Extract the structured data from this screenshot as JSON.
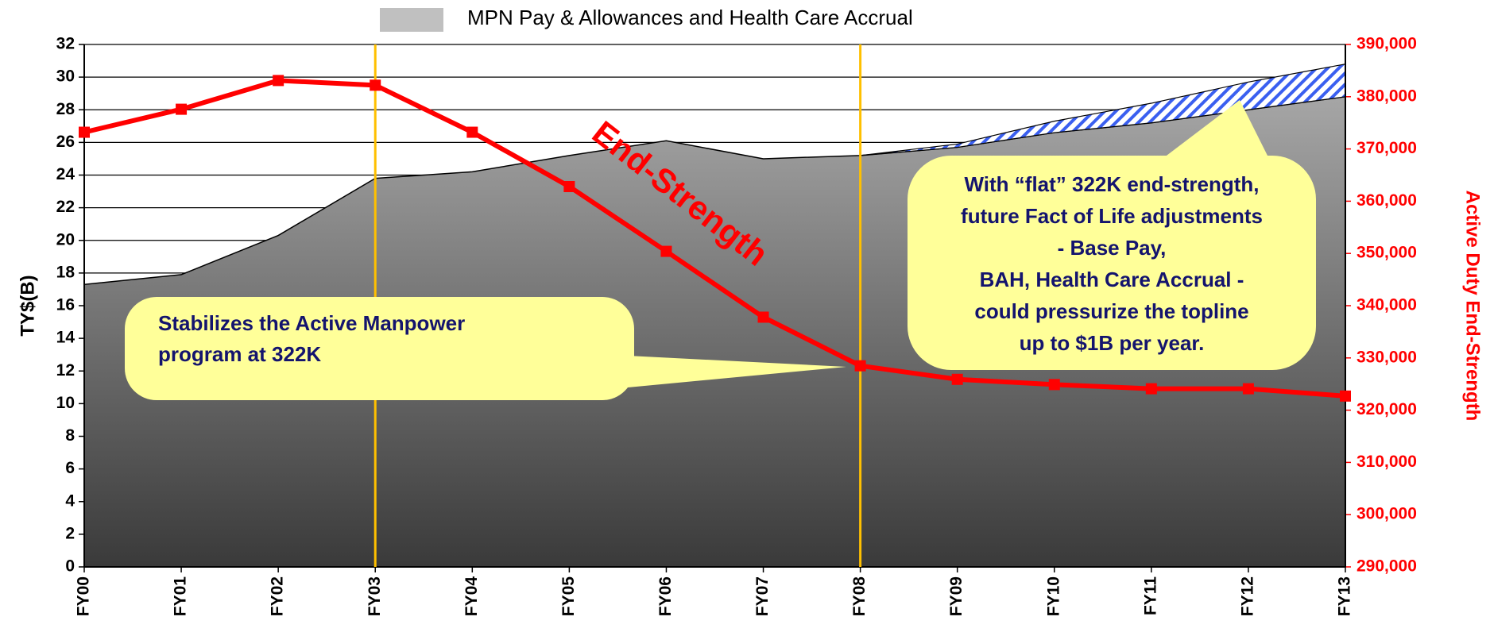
{
  "chart_data": {
    "type": "area_line",
    "legend": "MPN Pay & Allowances and Health Care Accrual",
    "ylabel": "TY$(B)",
    "y2label": "Active Duty End-Strength",
    "categories": [
      "FY00",
      "FY01",
      "FY02",
      "FY03",
      "FY04",
      "FY05",
      "FY06",
      "FY07",
      "FY08",
      "FY09",
      "FY10",
      "FY11",
      "FY12",
      "FY13"
    ],
    "series": [
      {
        "name": "MPN Pay & Allowances and Health Care Accrual",
        "type": "area",
        "color": "#8c8c8c",
        "values": [
          17.3,
          17.9,
          20.3,
          23.8,
          24.2,
          25.2,
          26.1,
          25.0,
          25.2,
          25.7,
          26.6,
          27.2,
          28.0,
          28.8
        ]
      },
      {
        "type": "stacked_area",
        "color": "#3a5ff0",
        "values": [
          null,
          null,
          null,
          null,
          null,
          null,
          null,
          null,
          0,
          0.2,
          0.7,
          1.2,
          1.7,
          2.0
        ]
      },
      {
        "type": "line",
        "axis": "y2",
        "color": "#ff0000",
        "values": [
          373200,
          377600,
          383100,
          382200,
          373200,
          362800,
          350400,
          337800,
          328500,
          325900,
          324900,
          324100,
          324100,
          322700
        ]
      }
    ],
    "ylim": [
      0,
      32
    ],
    "yticks": [
      0,
      2,
      4,
      6,
      8,
      10,
      12,
      14,
      16,
      18,
      20,
      22,
      24,
      26,
      28,
      30,
      32
    ],
    "y2lim": [
      290000,
      390000
    ],
    "y2ticks": [
      {
        "value": 290000,
        "label": "290,000"
      },
      {
        "value": 300000,
        "label": "300,000"
      },
      {
        "value": 310000,
        "label": "310,000"
      },
      {
        "value": 320000,
        "label": "320,000"
      },
      {
        "value": 330000,
        "label": "330,000"
      },
      {
        "value": 340000,
        "label": "340,000"
      },
      {
        "value": 350000,
        "label": "350,000"
      },
      {
        "value": 360000,
        "label": "360,000"
      },
      {
        "value": 370000,
        "label": "370,000"
      },
      {
        "value": 380000,
        "label": "380,000"
      },
      {
        "value": 390000,
        "label": "390,000"
      }
    ],
    "grid": true,
    "reference_lines": [
      "FY03",
      "FY08"
    ],
    "annotations": {
      "line_label": "End-Strength",
      "callout_left": [
        "Stabilizes the Active Manpower",
        "program at 322K"
      ],
      "callout_right": [
        "With “flat” 322K end-strength,",
        "future Fact of Life adjustments",
        "- Base Pay,",
        "BAH, Health Care Accrual -",
        "could pressurize the topline",
        "up to $1B per year."
      ]
    }
  }
}
